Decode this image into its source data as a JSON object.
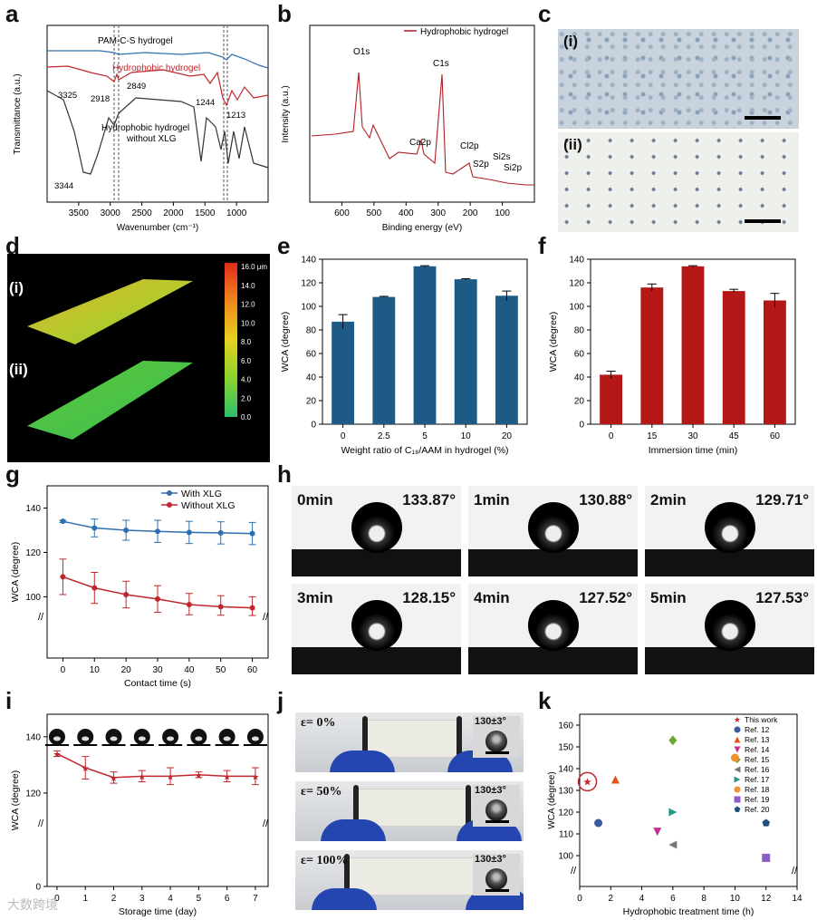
{
  "panel_letters": {
    "a": "a",
    "b": "b",
    "c": "c",
    "d": "d",
    "e": "e",
    "f": "f",
    "g": "g",
    "h": "h",
    "i": "i",
    "j": "j",
    "k": "k"
  },
  "panel_c": {
    "sub1": "(i)",
    "sub2": "(ii)"
  },
  "panel_d": {
    "sub1": "(i)",
    "sub2": "(ii)",
    "colorbar_ticks": [
      "16.0 μm",
      "14.0",
      "12.0",
      "10.0",
      "8.0",
      "6.0",
      "4.0",
      "2.0",
      "0.0"
    ]
  },
  "panel_h": {
    "cells": [
      {
        "time": "0min",
        "angle": "133.87°"
      },
      {
        "time": "1min",
        "angle": "130.88°"
      },
      {
        "time": "2min",
        "angle": "129.71°"
      },
      {
        "time": "3min",
        "angle": "128.15°"
      },
      {
        "time": "4min",
        "angle": "127.52°"
      },
      {
        "time": "5min",
        "angle": "127.53°"
      }
    ]
  },
  "panel_j": {
    "cells": [
      {
        "strain": "ε= 0%",
        "angle": "130±3°"
      },
      {
        "strain": "ε= 50%",
        "angle": "130±3°"
      },
      {
        "strain": "ε= 100%",
        "angle": "130±3°"
      }
    ]
  },
  "watermark": "大数跨境",
  "chart_data": [
    {
      "id": "a",
      "type": "line",
      "xlabel": "Wavenumber (cm⁻¹)",
      "ylabel": "Transmittance (a.u.)",
      "xlim": [
        4000,
        500
      ],
      "xticks": [
        3500,
        3000,
        2500,
        2000,
        1500,
        1000
      ],
      "series": [
        {
          "name": "PAM-C-S hydrogel",
          "color": "#2e6fb0"
        },
        {
          "name": "Hydrophobic hydrogel",
          "color": "#c0272d"
        },
        {
          "name": "Hydrophobic hydrogel without XLG",
          "color": "#333333"
        }
      ],
      "annotations": [
        "3325",
        "2918",
        "2849",
        "1244",
        "1213",
        "3344"
      ]
    },
    {
      "id": "b",
      "type": "line",
      "xlabel": "Binding energy (eV)",
      "ylabel": "Intensity (a.u.)",
      "xlim": [
        700,
        0
      ],
      "xticks": [
        600,
        500,
        400,
        300,
        200,
        100
      ],
      "series": [
        {
          "name": "Hydrophobic hydrogel",
          "color": "#c0272d"
        }
      ],
      "annotations": [
        "O1s",
        "C1s",
        "Ca2p",
        "Cl2p",
        "S2p",
        "Si2s",
        "Si2p"
      ]
    },
    {
      "id": "e",
      "type": "bar",
      "xlabel": "Weight ratio of C₁₈/AAM in hydrogel (%)",
      "ylabel": "WCA (degree)",
      "categories": [
        "0",
        "2.5",
        "5",
        "10",
        "20"
      ],
      "values": [
        87,
        108,
        134,
        123,
        109
      ],
      "errors": [
        6,
        0.5,
        0.5,
        0.5,
        4
      ],
      "ylim": [
        0,
        140
      ],
      "yticks": [
        0,
        20,
        40,
        60,
        80,
        100,
        120,
        140
      ],
      "color": "#1d5b86"
    },
    {
      "id": "f",
      "type": "bar",
      "xlabel": "Immersion time (min)",
      "ylabel": "WCA (degree)",
      "categories": [
        "0",
        "15",
        "30",
        "45",
        "60"
      ],
      "values": [
        42,
        116,
        134,
        113,
        105
      ],
      "errors": [
        3,
        3,
        0.5,
        1.5,
        6
      ],
      "ylim": [
        0,
        140
      ],
      "yticks": [
        0,
        20,
        40,
        60,
        80,
        100,
        120,
        140
      ],
      "color": "#b51717"
    },
    {
      "id": "g",
      "type": "line",
      "xlabel": "Contact time (s)",
      "ylabel": "WCA (degree)",
      "x": [
        0,
        10,
        20,
        30,
        40,
        50,
        60
      ],
      "xlim": [
        -5,
        65
      ],
      "yticks": [
        100,
        120,
        140
      ],
      "series": [
        {
          "name": "With XLG",
          "color": "#2e6fb0",
          "values": [
            134,
            131,
            130,
            129.5,
            129,
            128.8,
            128.5
          ],
          "errors": [
            0.5,
            4,
            4.5,
            5,
            5,
            5,
            5
          ]
        },
        {
          "name": "Without XLG",
          "color": "#c0272d",
          "values": [
            109,
            104,
            101,
            99,
            96.5,
            95.5,
            95
          ],
          "errors": [
            8,
            7,
            6,
            6,
            5,
            5,
            5
          ]
        }
      ]
    },
    {
      "id": "i",
      "type": "line",
      "xlabel": "Storage time (day)",
      "ylabel": "WCA (degree)",
      "x": [
        0,
        1,
        2,
        3,
        4,
        5,
        6,
        7
      ],
      "xticks": [
        0,
        1,
        2,
        3,
        4,
        5,
        6,
        7
      ],
      "yticks": [
        0,
        120,
        140
      ],
      "series": [
        {
          "name": "WCA",
          "color": "#c0272d",
          "values": [
            134,
            129,
            125.5,
            126,
            126,
            126.5,
            126,
            126
          ],
          "errors": [
            1,
            4,
            2,
            2,
            3,
            1,
            2,
            3
          ]
        }
      ]
    },
    {
      "id": "k",
      "type": "scatter",
      "xlabel": "Hydrophobic treatment time (h)",
      "ylabel": "WCA (degree)",
      "xlim": [
        0,
        14
      ],
      "xticks": [
        0,
        2,
        4,
        6,
        8,
        10,
        12,
        14
      ],
      "yticks": [
        100,
        110,
        120,
        130,
        140,
        150,
        160
      ],
      "series": [
        {
          "name": "This work",
          "x": 0.5,
          "y": 134,
          "color": "#c0272d",
          "marker": "star"
        },
        {
          "name": "Ref. 12",
          "x": 1.2,
          "y": 115,
          "color": "#3a5c9c",
          "marker": "circle"
        },
        {
          "name": "Ref. 13",
          "x": 2.3,
          "y": 135,
          "color": "#e0541d",
          "marker": "triangle-up"
        },
        {
          "name": "Ref. 14",
          "x": 5,
          "y": 111,
          "color": "#c2318e",
          "marker": "triangle-down"
        },
        {
          "name": "Ref. 15",
          "x": 6,
          "y": 153,
          "color": "#6aa82b",
          "marker": "diamond"
        },
        {
          "name": "Ref. 16",
          "x": 6,
          "y": 105,
          "color": "#777777",
          "marker": "triangle-left"
        },
        {
          "name": "Ref. 17",
          "x": 6,
          "y": 120,
          "color": "#2b9a8c",
          "marker": "triangle-right"
        },
        {
          "name": "Ref. 18",
          "x": 10,
          "y": 145,
          "color": "#f0922b",
          "marker": "circle"
        },
        {
          "name": "Ref. 19",
          "x": 12,
          "y": 99,
          "color": "#8e5cc9",
          "marker": "square"
        },
        {
          "name": "Ref. 20",
          "x": 12,
          "y": 115,
          "color": "#1f4f7a",
          "marker": "pentagon"
        }
      ]
    }
  ]
}
